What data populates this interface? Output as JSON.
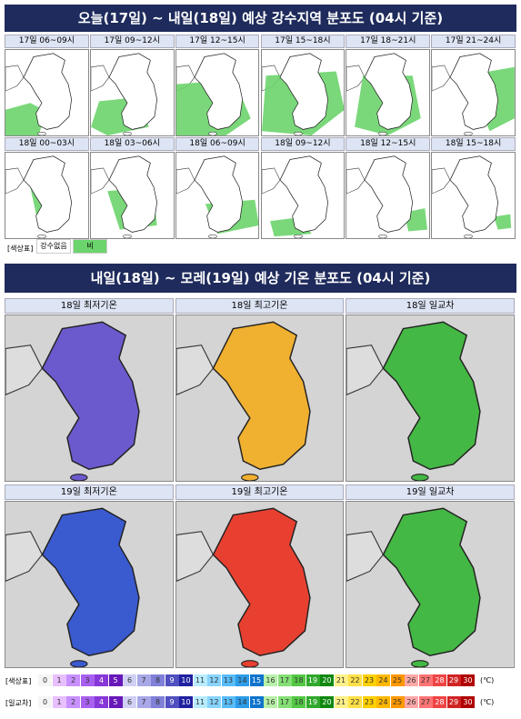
{
  "precip_section": {
    "title": "오늘(17일) ~ 내일(18일) 예상 강수지역 분포도 (04시 기준)",
    "panels": [
      "17일 06~09시",
      "17일 09~12시",
      "17일 12~15시",
      "17일 15~18시",
      "17일 18~21시",
      "17일 21~24시",
      "18일 00~03시",
      "18일 03~06시",
      "18일 06~09시",
      "18일 09~12시",
      "18일 12~15시",
      "18일 15~18시"
    ],
    "legend": {
      "label": "[색상표]",
      "items": [
        {
          "label": "강수없음",
          "color": "#ffffff"
        },
        {
          "label": "비",
          "color": "#6cd46c"
        }
      ]
    }
  },
  "temp_section": {
    "title": "내일(18일) ~ 모레(19일) 예상 기온 분포도 (04시 기준)",
    "panels": [
      "18일 최저기온",
      "18일 최고기온",
      "18일 일교차",
      "19일 최저기온",
      "19일 최고기온",
      "19일 일교차"
    ],
    "scale_labels": [
      "[색상표]",
      "[일교차]"
    ],
    "levels": [
      0,
      1,
      2,
      3,
      4,
      5,
      6,
      7,
      8,
      9,
      10,
      11,
      12,
      13,
      14,
      15,
      16,
      17,
      18,
      19,
      20,
      21,
      22,
      23,
      24,
      25,
      26,
      27,
      28,
      29,
      30
    ],
    "level_colors": [
      "#f5f5f5",
      "#e8c0ff",
      "#c890ff",
      "#a860f0",
      "#8838d8",
      "#6818b8",
      "#d0d0f4",
      "#a8a8e8",
      "#8080d8",
      "#5050c0",
      "#2020a0",
      "#b8ecff",
      "#88d4ff",
      "#58bcf8",
      "#2c9ce8",
      "#1074cc",
      "#b8f0a8",
      "#84e074",
      "#54c844",
      "#30a82c",
      "#108810",
      "#fff088",
      "#ffe048",
      "#ffd000",
      "#ffb800",
      "#ff9800",
      "#ffa8a8",
      "#ff7474",
      "#f04444",
      "#d02424",
      "#b00000"
    ],
    "unit": "(℃)"
  }
}
